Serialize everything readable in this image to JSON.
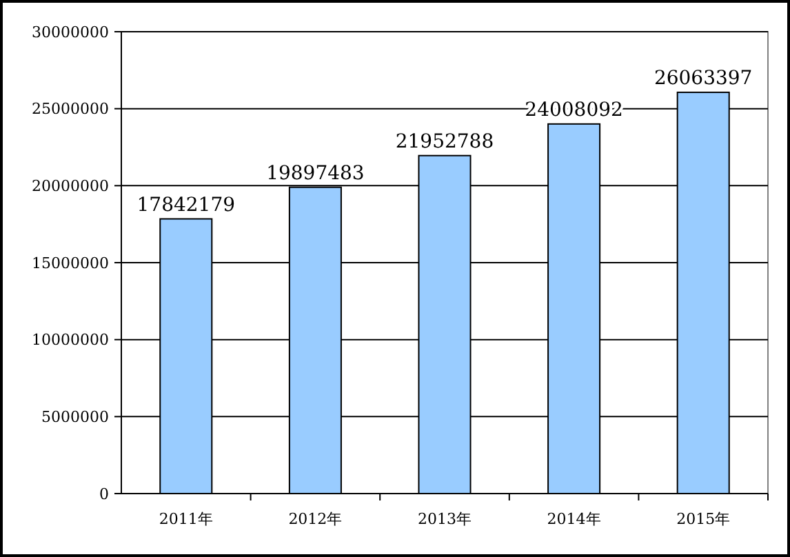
{
  "chart_data": {
    "type": "bar",
    "categories": [
      "2011年",
      "2012年",
      "2013年",
      "2014年",
      "2015年"
    ],
    "values": [
      17842179,
      19897483,
      21952788,
      24008092,
      26063397
    ],
    "color": "#99ccff",
    "data_labels": true,
    "grid": "y",
    "ylim": [
      0,
      30000000
    ],
    "yticks": [
      0,
      5000000,
      10000000,
      15000000,
      20000000,
      25000000,
      30000000
    ]
  }
}
